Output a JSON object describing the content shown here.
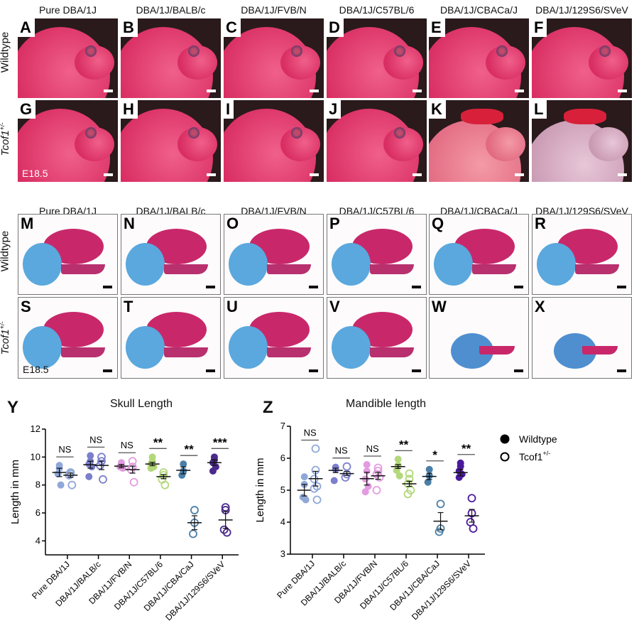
{
  "figure": {
    "column_headers": [
      "Pure DBA/1J",
      "DBA/1J/BALB/c",
      "DBA/1J/FVB/N",
      "DBA/1J/C57BL/6",
      "DBA/1J/CBACa/J",
      "DBA/1J/129S6/SVeV"
    ],
    "row_labels": {
      "wildtype": "Wildtype",
      "mutant": "Tcof1",
      "mutant_sup": "+/-"
    },
    "stage_label": "E18.5",
    "photo_panels": {
      "wildtype": [
        "A",
        "B",
        "C",
        "D",
        "E",
        "F"
      ],
      "mutant": [
        "G",
        "H",
        "I",
        "J",
        "K",
        "L"
      ]
    },
    "skeletal_panels": {
      "wildtype": [
        "M",
        "N",
        "O",
        "P",
        "Q",
        "R"
      ],
      "mutant": [
        "S",
        "T",
        "U",
        "V",
        "W",
        "X"
      ]
    },
    "colors": {
      "photo_bg": "#2a1a1c",
      "tissue_pink": "#e8466f",
      "bone_red": "#c8286a",
      "cartilage_blue": "#4aa8d8"
    }
  },
  "chart_data": [
    {
      "panel": "Y",
      "type": "scatter",
      "title": "Skull Length",
      "xlabel": "",
      "ylabel": "Length in mm",
      "ylim": [
        3,
        12
      ],
      "yticks": [
        4,
        6,
        8,
        10,
        12
      ],
      "categories": [
        "Pure DBA/1J",
        "DBA/1J/BALB/c",
        "DBA/1J/FVB/N",
        "DBA/1J/C57BL/6",
        "DBA/1J/CBA/CaJ",
        "DBA/1J/129S6/SVeV"
      ],
      "group_colors": [
        "#8fa8d8",
        "#7b7fcc",
        "#e49be0",
        "#b3d87a",
        "#4a7fa8",
        "#4b2a8c"
      ],
      "significance": [
        "NS",
        "NS",
        "NS",
        "**",
        "**",
        "***"
      ],
      "series": [
        {
          "name": "Wildtype",
          "marker": "filled",
          "points": [
            [
              9.4,
              9.2,
              8.8,
              8.0
            ],
            [
              10.1,
              9.7,
              9.5,
              9.3,
              8.6
            ],
            [
              9.6,
              9.4,
              9.3,
              9.2
            ],
            [
              10.0,
              9.7,
              9.5,
              9.3,
              9.2
            ],
            [
              9.5,
              9.0,
              8.7
            ],
            [
              10.0,
              9.8,
              9.6,
              9.3,
              9.0
            ]
          ],
          "mean": [
            8.9,
            9.45,
            9.35,
            9.5,
            9.05,
            9.6
          ],
          "sem": [
            0.3,
            0.25,
            0.12,
            0.12,
            0.25,
            0.2
          ]
        },
        {
          "name": "Tcof1+/-",
          "marker": "open",
          "points": [
            [
              8.9,
              8.8,
              8.7,
              8.0
            ],
            [
              10.0,
              9.7,
              9.4,
              8.4
            ],
            [
              9.7,
              9.3,
              9.1,
              8.2
            ],
            [
              8.9,
              8.7,
              8.4,
              8.0
            ],
            [
              6.2,
              5.3,
              4.5
            ],
            [
              6.4,
              6.2,
              4.8,
              4.6
            ]
          ],
          "mean": [
            8.7,
            9.4,
            9.1,
            8.6,
            5.3,
            5.5
          ],
          "sem": [
            0.15,
            0.3,
            0.25,
            0.15,
            0.5,
            0.6
          ]
        }
      ]
    },
    {
      "panel": "Z",
      "type": "scatter",
      "title": "Mandible length",
      "xlabel": "",
      "ylabel": "Length in mm",
      "ylim": [
        3,
        7
      ],
      "yticks": [
        3,
        4,
        5,
        6,
        7
      ],
      "categories": [
        "Pure DBA/1J",
        "DBA/1J/BALB/c",
        "DBA/1J/FVB/N",
        "DBA/1J/C57BL/6",
        "DBA/1J/CBA/CaJ",
        "DBA/1J/129S6/SVeV"
      ],
      "group_colors": [
        "#8fa8d8",
        "#7b7fcc",
        "#e49be0",
        "#b3d87a",
        "#4a7fa8",
        "#4b1a9c"
      ],
      "significance": [
        "NS",
        "NS",
        "NS",
        "**",
        "*",
        "**"
      ],
      "series": [
        {
          "name": "Wildtype",
          "marker": "filled",
          "points": [
            [
              5.42,
              5.18,
              4.78,
              4.7
            ],
            [
              5.72,
              5.65,
              5.3
            ],
            [
              5.8,
              5.6,
              5.35,
              5.12,
              4.95
            ],
            [
              5.97,
              5.78,
              5.62,
              5.45
            ],
            [
              5.65,
              5.45,
              5.25
            ],
            [
              5.85,
              5.75,
              5.6,
              5.5,
              5.4
            ]
          ],
          "mean": [
            5.0,
            5.62,
            5.36,
            5.74,
            5.43,
            5.55
          ],
          "sem": [
            0.18,
            0.07,
            0.2,
            0.06,
            0.1,
            0.1
          ]
        },
        {
          "name": "Tcof1+/-",
          "marker": "open",
          "points": [
            [
              6.3,
              5.63,
              5.35,
              5.12,
              5.05,
              4.7
            ],
            [
              5.74,
              5.5,
              5.4
            ],
            [
              5.7,
              5.6,
              5.5,
              5.4,
              5.0
            ],
            [
              5.52,
              5.35,
              5.2,
              5.0,
              4.88
            ],
            [
              4.57,
              3.8,
              3.7
            ],
            [
              4.75,
              4.28,
              4.0,
              3.8
            ]
          ],
          "mean": [
            5.36,
            5.52,
            5.45,
            5.2,
            4.03,
            4.2
          ],
          "sem": [
            0.23,
            0.06,
            0.11,
            0.08,
            0.27,
            0.2
          ]
        }
      ],
      "legend": {
        "placement": "right",
        "items": [
          {
            "label": "Wildtype",
            "marker": "filled"
          },
          {
            "label": "Tcof1",
            "sup": "+/-",
            "marker": "open"
          }
        ]
      }
    }
  ]
}
